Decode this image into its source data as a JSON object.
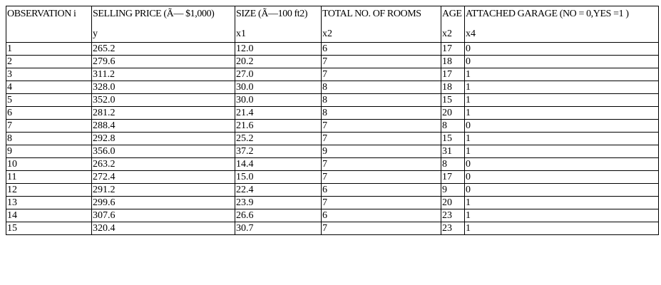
{
  "table": {
    "headers": [
      {
        "title": "OBSERVATION i",
        "var": ""
      },
      {
        "title": "SELLING PRICE (Ã— $1,000)",
        "var": "y"
      },
      {
        "title": "SIZE (Ã—100 ft2)",
        "var": "x1"
      },
      {
        "title": "TOTAL NO. OF ROOMS",
        "var": "x2"
      },
      {
        "title": "AGE",
        "var": "x2"
      },
      {
        "title": "ATTACHED GARAGE (NO = 0,YES =1 )",
        "var": "x4"
      }
    ],
    "rows": [
      [
        "1",
        "265.2",
        "12.0",
        "6",
        "17",
        "0"
      ],
      [
        "2",
        "279.6",
        "20.2",
        "7",
        "18",
        "0"
      ],
      [
        "3",
        "311.2",
        "27.0",
        "7",
        "17",
        "1"
      ],
      [
        "4",
        "328.0",
        "30.0",
        "8",
        "18",
        "1"
      ],
      [
        "5",
        "352.0",
        "30.0",
        "8",
        "15",
        "1"
      ],
      [
        "6",
        "281.2",
        "21.4",
        "8",
        "20",
        "1"
      ],
      [
        "7",
        "288.4",
        "21.6",
        "7",
        "8",
        "0"
      ],
      [
        "8",
        "292.8",
        "25.2",
        "7",
        "15",
        "1"
      ],
      [
        "9",
        "356.0",
        "37.2",
        "9",
        "31",
        "1"
      ],
      [
        "10",
        "263.2",
        "14.4",
        "7",
        "8",
        "0"
      ],
      [
        "11",
        "272.4",
        "15.0",
        "7",
        "17",
        "0"
      ],
      [
        "12",
        "291.2",
        "22.4",
        "6",
        "9",
        "0"
      ],
      [
        "13",
        "299.6",
        "23.9",
        "7",
        "20",
        "1"
      ],
      [
        "14",
        "307.6",
        "26.6",
        "6",
        "23",
        "1"
      ],
      [
        "15",
        "320.4",
        "30.7",
        "7",
        "23",
        "1"
      ]
    ]
  }
}
